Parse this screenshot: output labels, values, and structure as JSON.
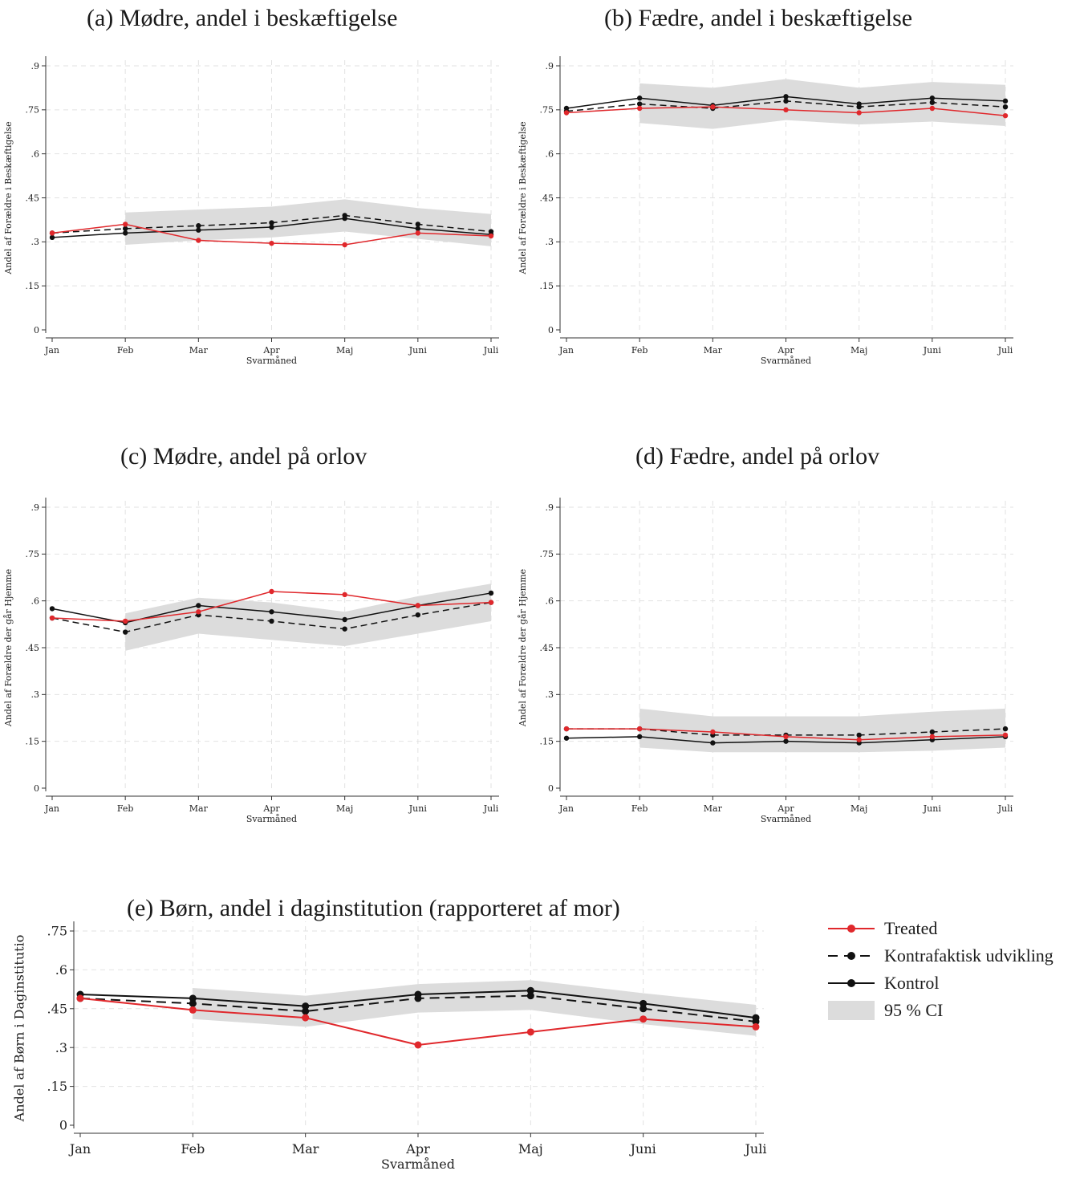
{
  "colors": {
    "treated": "#e0282c",
    "counterfactual": "#111111",
    "control": "#111111",
    "ci": "#dcdcdc"
  },
  "legend": {
    "treated": "Treated",
    "counterfactual": "Kontrafaktisk udvikling",
    "control": "Kontrol",
    "ci": "95 % CI"
  },
  "chart_data": [
    {
      "id": "a",
      "type": "line",
      "title": "(a) Mødre, andel i beskæftigelse",
      "xlabel": "Svarmåned",
      "ylabel": "Andel af Forældre i Beskæftigelse",
      "categories": [
        "Jan",
        "Feb",
        "Mar",
        "Apr",
        "Maj",
        "Juni",
        "Juli"
      ],
      "ylim": [
        0,
        0.9
      ],
      "yticks": [
        0,
        0.15,
        0.3,
        0.45,
        0.6,
        0.75,
        0.9
      ],
      "ytick_labels": [
        "0",
        ".15",
        ".3",
        ".45",
        ".6",
        ".75",
        ".9"
      ],
      "grid": true,
      "treated": [
        0.33,
        0.36,
        0.305,
        0.295,
        0.29,
        0.33,
        0.32
      ],
      "counterfactual": [
        0.33,
        0.345,
        0.355,
        0.365,
        0.39,
        0.36,
        0.335
      ],
      "control": [
        0.315,
        0.33,
        0.34,
        0.35,
        0.38,
        0.345,
        0.325
      ],
      "ci_lower": [
        null,
        0.29,
        0.305,
        0.315,
        0.335,
        0.31,
        0.285
      ],
      "ci_upper": [
        null,
        0.4,
        0.41,
        0.42,
        0.445,
        0.415,
        0.395
      ]
    },
    {
      "id": "b",
      "type": "line",
      "title": "(b) Fædre, andel i beskæftigelse",
      "xlabel": "Svarmåned",
      "ylabel": "Andel af Forældre i Beskæftigelse",
      "categories": [
        "Jan",
        "Feb",
        "Mar",
        "Apr",
        "Maj",
        "Juni",
        "Juli"
      ],
      "ylim": [
        0,
        0.9
      ],
      "yticks": [
        0,
        0.15,
        0.3,
        0.45,
        0.6,
        0.75,
        0.9
      ],
      "ytick_labels": [
        "0",
        ".15",
        ".3",
        ".45",
        ".6",
        ".75",
        ".9"
      ],
      "grid": true,
      "treated": [
        0.74,
        0.755,
        0.76,
        0.75,
        0.74,
        0.755,
        0.73
      ],
      "counterfactual": [
        0.745,
        0.77,
        0.755,
        0.78,
        0.76,
        0.775,
        0.76
      ],
      "control": [
        0.755,
        0.79,
        0.765,
        0.795,
        0.77,
        0.79,
        0.78
      ],
      "ci_lower": [
        null,
        0.705,
        0.685,
        0.715,
        0.7,
        0.71,
        0.695
      ],
      "ci_upper": [
        null,
        0.84,
        0.825,
        0.855,
        0.825,
        0.845,
        0.835
      ]
    },
    {
      "id": "c",
      "type": "line",
      "title": "(c) Mødre, andel på orlov",
      "xlabel": "Svarmåned",
      "ylabel": "Andel af Forældre der går Hjemme",
      "categories": [
        "Jan",
        "Feb",
        "Mar",
        "Apr",
        "Maj",
        "Juni",
        "Juli"
      ],
      "ylim": [
        0,
        0.9
      ],
      "yticks": [
        0,
        0.15,
        0.3,
        0.45,
        0.6,
        0.75,
        0.9
      ],
      "ytick_labels": [
        "0",
        ".15",
        ".3",
        ".45",
        ".6",
        ".75",
        ".9"
      ],
      "grid": true,
      "treated": [
        0.545,
        0.535,
        0.565,
        0.63,
        0.62,
        0.585,
        0.595
      ],
      "counterfactual": [
        0.545,
        0.5,
        0.555,
        0.535,
        0.51,
        0.555,
        0.595
      ],
      "control": [
        0.575,
        0.53,
        0.585,
        0.565,
        0.54,
        0.585,
        0.625
      ],
      "ci_lower": [
        null,
        0.44,
        0.495,
        0.475,
        0.455,
        0.495,
        0.535
      ],
      "ci_upper": [
        null,
        0.56,
        0.61,
        0.595,
        0.565,
        0.615,
        0.655
      ]
    },
    {
      "id": "d",
      "type": "line",
      "title": "(d) Fædre, andel på orlov",
      "xlabel": "Svarmåned",
      "ylabel": "Andel af Forældre der går Hjemme",
      "categories": [
        "Jan",
        "Feb",
        "Mar",
        "Apr",
        "Maj",
        "Juni",
        "Juli"
      ],
      "ylim": [
        0,
        0.9
      ],
      "yticks": [
        0,
        0.15,
        0.3,
        0.45,
        0.6,
        0.75,
        0.9
      ],
      "ytick_labels": [
        "0",
        ".15",
        ".3",
        ".45",
        ".6",
        ".75",
        ".9"
      ],
      "grid": true,
      "treated": [
        0.19,
        0.19,
        0.18,
        0.165,
        0.155,
        0.165,
        0.17
      ],
      "counterfactual": [
        0.19,
        0.19,
        0.17,
        0.17,
        0.17,
        0.18,
        0.19
      ],
      "control": [
        0.16,
        0.165,
        0.145,
        0.15,
        0.145,
        0.155,
        0.165
      ],
      "ci_lower": [
        null,
        0.13,
        0.115,
        0.115,
        0.115,
        0.12,
        0.13
      ],
      "ci_upper": [
        null,
        0.255,
        0.23,
        0.23,
        0.23,
        0.245,
        0.255
      ]
    },
    {
      "id": "e",
      "type": "line",
      "title": "(e) Børn, andel i daginstitution (rapporteret af mor)",
      "xlabel": "Svarmåned",
      "ylabel": "Andel af Børn i Daginstitutio",
      "categories": [
        "Jan",
        "Feb",
        "Mar",
        "Apr",
        "Maj",
        "Juni",
        "Juli"
      ],
      "ylim": [
        0,
        0.75
      ],
      "yticks": [
        0,
        0.15,
        0.3,
        0.45,
        0.6,
        0.75
      ],
      "ytick_labels": [
        "0",
        ".15",
        ".3",
        ".45",
        ".6",
        ".75"
      ],
      "grid": true,
      "treated": [
        0.49,
        0.445,
        0.415,
        0.31,
        0.36,
        0.41,
        0.38
      ],
      "counterfactual": [
        0.49,
        0.47,
        0.44,
        0.49,
        0.5,
        0.45,
        0.4
      ],
      "control": [
        0.505,
        0.49,
        0.46,
        0.505,
        0.52,
        0.47,
        0.415
      ],
      "ci_lower": [
        null,
        0.41,
        0.38,
        0.435,
        0.445,
        0.39,
        0.345
      ],
      "ci_upper": [
        null,
        0.53,
        0.5,
        0.545,
        0.56,
        0.51,
        0.465
      ]
    }
  ]
}
